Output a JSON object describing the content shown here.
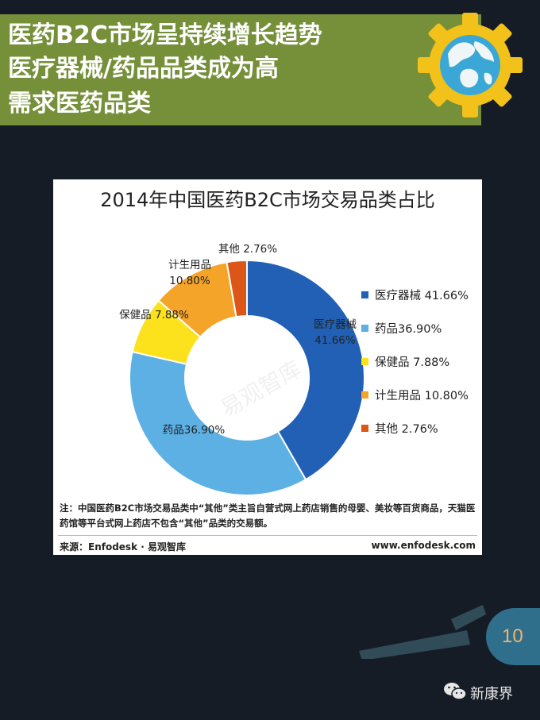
{
  "banner": {
    "title_lines": [
      "医药B2C市场呈持续增长趋势",
      "医疗器械/药品品类成为高",
      "需求医药品类"
    ],
    "background": "#76903a",
    "icon": "gear-globe-icon"
  },
  "chart_data": {
    "type": "pie",
    "title": "2014年中国医药B2C市场交易品类占比",
    "slices": [
      {
        "name": "医疗器械",
        "value": 41.66,
        "pct_text": "41.66%",
        "color": "#2160b4",
        "label_lines": [
          "医疗器械",
          "41.66%"
        ]
      },
      {
        "name": "药品",
        "value": 36.9,
        "pct_text": "36.90%",
        "color": "#5cb0e4",
        "label_lines": [
          "药品36.90%"
        ]
      },
      {
        "name": "保健品",
        "value": 7.88,
        "pct_text": "7.88%",
        "color": "#fce21c",
        "label_lines": [
          "保健品 7.88%"
        ]
      },
      {
        "name": "计生用品",
        "value": 10.8,
        "pct_text": "10.80%",
        "color": "#f4a428",
        "label_lines": [
          "计生用品",
          "10.80%"
        ]
      },
      {
        "name": "其他",
        "value": 2.76,
        "pct_text": "2.76%",
        "color": "#dc5618",
        "label_lines": [
          "其他 2.76%"
        ]
      }
    ],
    "legend": [
      {
        "label": "医疗器械 41.66%",
        "color": "#2160b4"
      },
      {
        "label": "药品36.90%",
        "color": "#5cb0e4"
      },
      {
        "label": "保健品 7.88%",
        "color": "#fce21c"
      },
      {
        "label": "计生用品 10.80%",
        "color": "#f4a428"
      },
      {
        "label": "其他 2.76%",
        "color": "#dc5618"
      }
    ],
    "legend_position": "right",
    "donut": true,
    "watermark": "易观智库"
  },
  "note": "注：中国医药B2C市场交易品类中“其他”类主旨自营式网上药店销售的母婴、美妆等百货商品，天猫医药馆等平台式网上药店不包含“其他”品类的交易额。",
  "source_left": "来源：Enfodesk · 易观智库",
  "source_right": "www.enfodesk.com",
  "page_number": "10",
  "page_accent": "#2f6f8c",
  "account_name": "新康界",
  "account_icon": "wechat-icon"
}
